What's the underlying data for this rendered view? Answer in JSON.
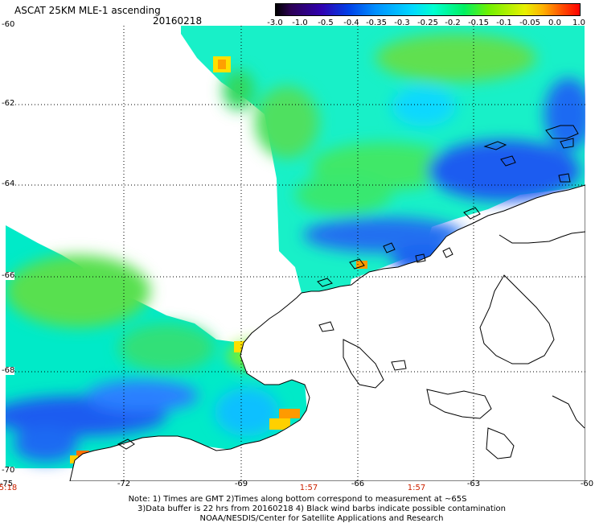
{
  "header": {
    "title": "ASCAT 25KM MLE-1 ascending",
    "date": "20160218"
  },
  "colorbar": {
    "ticks": [
      "-3.0",
      "-1.0",
      "-0.5",
      "-0.4",
      "-0.35",
      "-0.3",
      "-0.25",
      "-0.2",
      "-0.15",
      "-0.1",
      "-0.05",
      "0.0",
      "1.0"
    ],
    "colors": [
      "#000000",
      "#3000b0",
      "#0040e8",
      "#0090ff",
      "#00d8ff",
      "#00ffd0",
      "#00f060",
      "#70f000",
      "#e8f000",
      "#ffb000",
      "#ff5000",
      "#ff0000"
    ]
  },
  "map": {
    "lat_labels": [
      "-60",
      "-62",
      "-64",
      "-66",
      "-68",
      "-70"
    ],
    "lon_labels": [
      "-75",
      "-72",
      "-69",
      "-66",
      "-63",
      "-60"
    ],
    "time_labels": [
      "5:18",
      "1:57",
      "1:57"
    ],
    "land_color": "#ffffff",
    "coast_color": "#000000"
  },
  "notes": {
    "line1": "Note: 1) Times are GMT 2)Times along bottom correspond to measurement at ~65S",
    "line2": "3)Data buffer is 22 hrs from 20160218 4) Black wind barbs indicate possible contamination",
    "line3": "NOAA/NESDIS/Center for Satellite Applications and Research"
  }
}
